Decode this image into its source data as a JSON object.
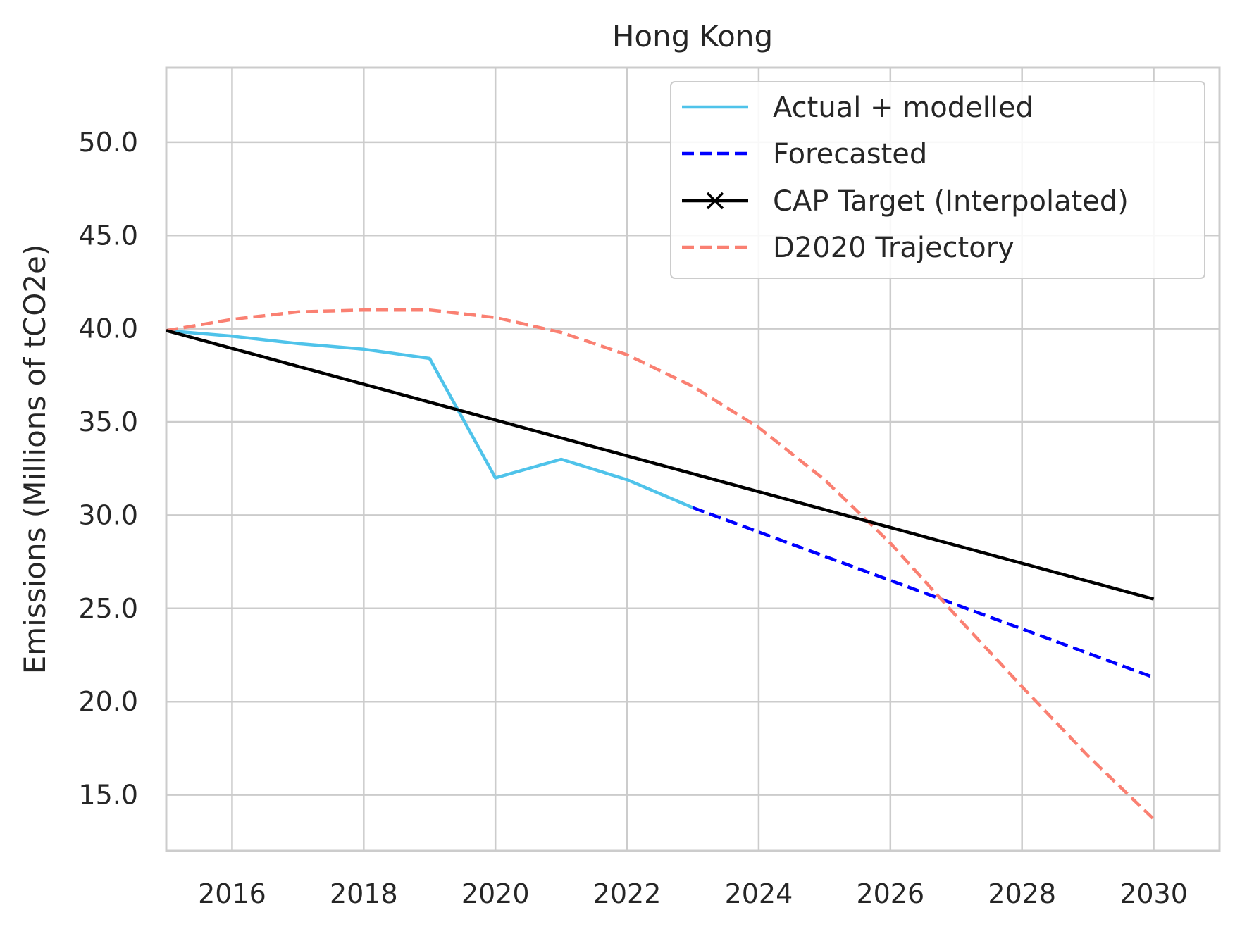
{
  "chart_data": {
    "type": "line",
    "title": "Hong Kong",
    "xlabel": "",
    "ylabel": "Emissions (Millions of tCO2e)",
    "xlim": [
      2015,
      2031
    ],
    "ylim": [
      12,
      54
    ],
    "xticks": [
      2016,
      2018,
      2020,
      2022,
      2024,
      2026,
      2028,
      2030
    ],
    "yticks": [
      15.0,
      20.0,
      25.0,
      30.0,
      35.0,
      40.0,
      45.0,
      50.0
    ],
    "xtick_labels": [
      "2016",
      "2018",
      "2020",
      "2022",
      "2024",
      "2026",
      "2028",
      "2030"
    ],
    "ytick_labels": [
      "15.0",
      "20.0",
      "25.0",
      "30.0",
      "35.0",
      "40.0",
      "45.0",
      "50.0"
    ],
    "grid": true,
    "legend_position": "top-right",
    "series": [
      {
        "name": "Actual + modelled",
        "color": "#4fc3ea",
        "style": "solid",
        "x": [
          2015,
          2016,
          2017,
          2018,
          2019,
          2020,
          2021,
          2022,
          2023
        ],
        "y": [
          39.9,
          39.6,
          39.2,
          38.9,
          38.4,
          32.0,
          33.0,
          31.9,
          30.4
        ]
      },
      {
        "name": "Forecasted",
        "color": "#0000ff",
        "style": "dashed",
        "x": [
          2023,
          2024,
          2025,
          2026,
          2027,
          2028,
          2029,
          2030
        ],
        "y": [
          30.4,
          29.1,
          27.8,
          26.5,
          25.2,
          23.9,
          22.6,
          21.3
        ]
      },
      {
        "name": "CAP Target (Interpolated)",
        "color": "#000000",
        "style": "solid",
        "marker": "x",
        "x": [
          2015,
          2030
        ],
        "y": [
          39.9,
          25.5
        ]
      },
      {
        "name": "D2020 Trajectory",
        "color": "#fa8072",
        "style": "dashed",
        "x": [
          2015,
          2016,
          2017,
          2018,
          2019,
          2020,
          2021,
          2022,
          2023,
          2024,
          2025,
          2026,
          2027,
          2028,
          2029,
          2030
        ],
        "y": [
          39.9,
          40.5,
          40.9,
          41.0,
          41.0,
          40.6,
          39.8,
          38.6,
          36.9,
          34.7,
          31.9,
          28.5,
          24.6,
          20.8,
          17.1,
          13.7
        ]
      }
    ]
  }
}
